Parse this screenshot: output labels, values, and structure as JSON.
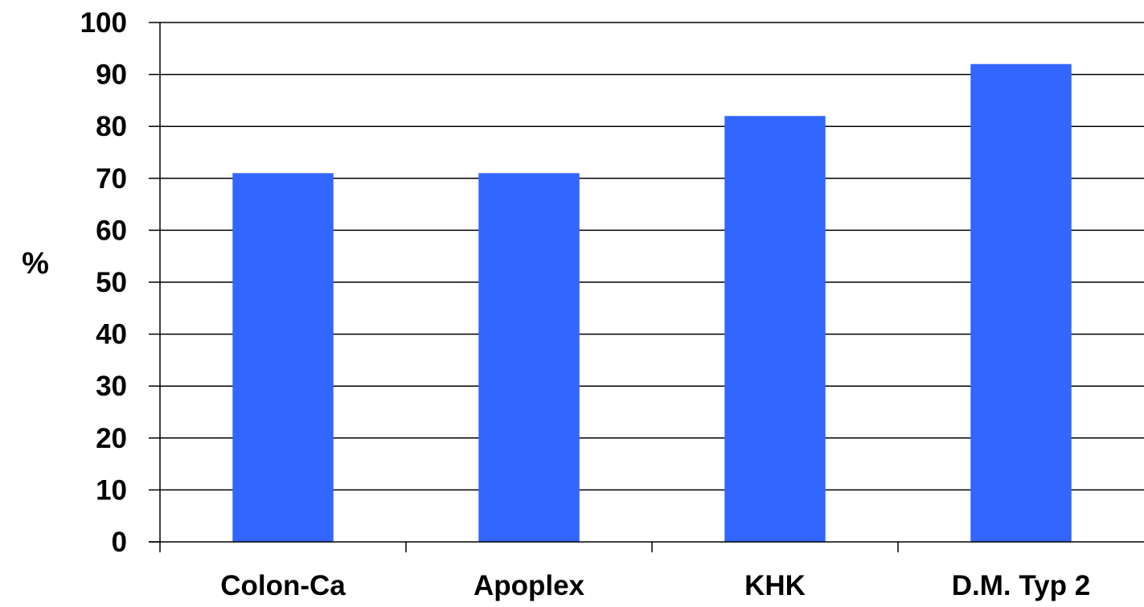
{
  "chart_data": {
    "type": "bar",
    "categories": [
      "Colon-Ca",
      "Apoplex",
      "KHK",
      "D.M. Typ 2"
    ],
    "values": [
      71,
      71,
      82,
      92
    ],
    "title": "",
    "xlabel": "",
    "ylabel": "%",
    "ylim": [
      0,
      100
    ],
    "yticks": [
      0,
      10,
      20,
      30,
      40,
      50,
      60,
      70,
      80,
      90,
      100
    ],
    "grid": true,
    "legend": "none",
    "colors": {
      "bar": "#3366FF",
      "grid": "#000000",
      "axis": "#000000",
      "background": "#FFFFFF"
    }
  }
}
